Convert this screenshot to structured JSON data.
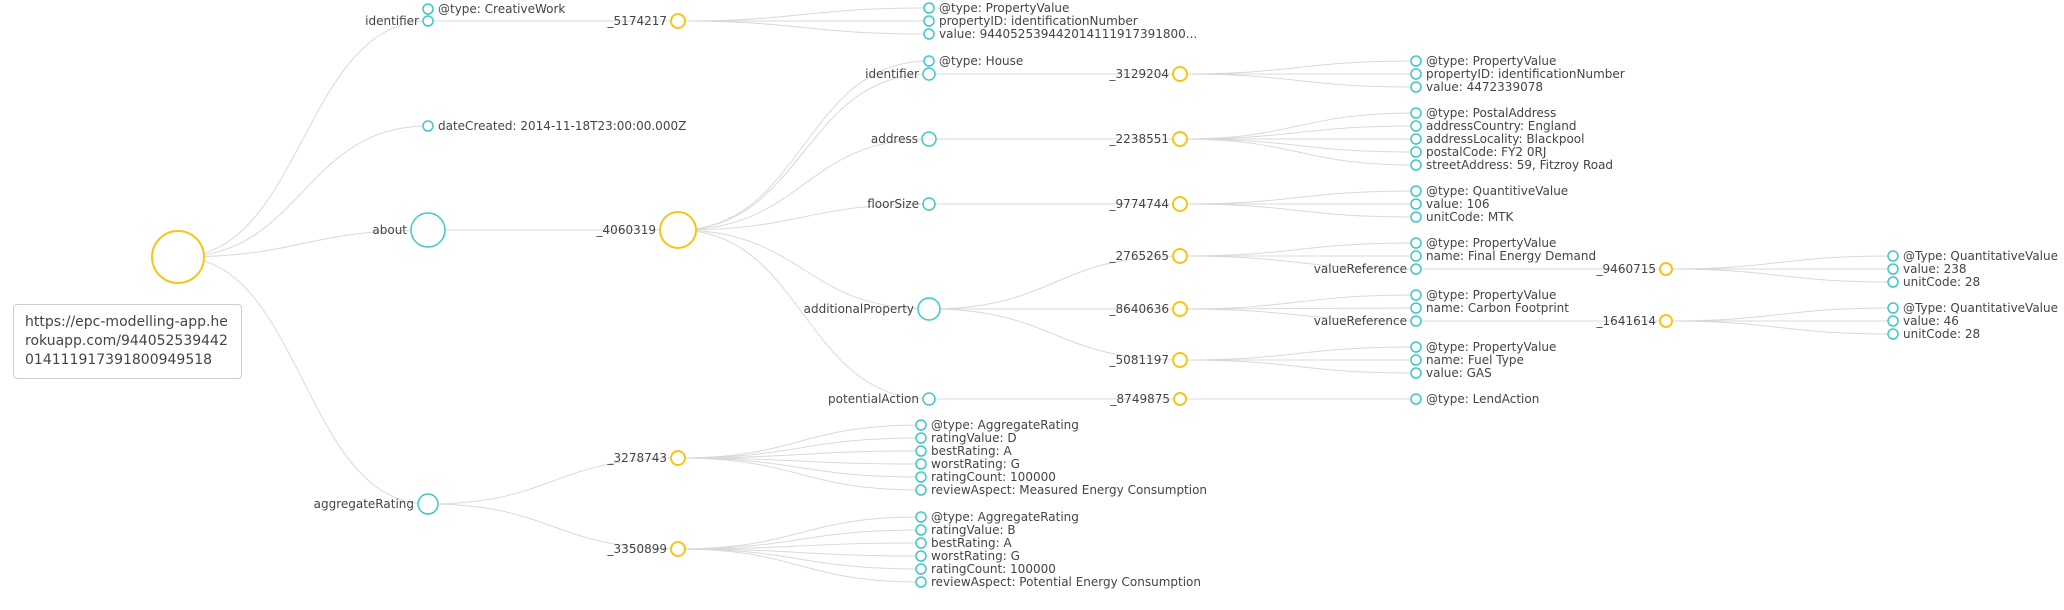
{
  "source_url": "https://epc-modelling-app.herokuapp.com/9440525394420141119173918009495​18",
  "colors": {
    "blank_node": "#f5c518",
    "property_node": "#3fc7c7",
    "link": "#d9d9d9",
    "text": "#444444"
  },
  "labels": {
    "n1": "identifier",
    "n2": "@type: CreativeWork",
    "n3": "_5174217",
    "n4": "@type: PropertyValue",
    "n5": "propertyID: identificationNumber",
    "n6": "value: 944052539442014111917391800...",
    "n7": "dateCreated: 2014-11-18T23:00:00.000Z",
    "n8": "about",
    "n9": "_4060319",
    "n10": "@type: House",
    "n11": "identifier",
    "n12": "_3129204",
    "n13": "@type: PropertyValue",
    "n14": "propertyID: identificationNumber",
    "n15": "value: 4472339078",
    "n16": "address",
    "n17": "_2238551",
    "n18": "@type: PostalAddress",
    "n19": "addressCountry: England",
    "n20": "addressLocality: Blackpool",
    "n21": "postalCode: FY2 0RJ",
    "n22": "streetAddress: 59, Fitzroy Road",
    "n23": "floorSize",
    "n24": "_9774744",
    "n25": "@type: QuantitiveValue",
    "n26": "value: 106",
    "n27": "unitCode: MTK",
    "n28": "additionalProperty",
    "n29": "_2765265",
    "n30": "@type: PropertyValue",
    "n31": "name: Final Energy Demand",
    "n32": "valueReference",
    "n33": "_9460715",
    "n34": "@Type: QuantitativeValue",
    "n35": "value: 238",
    "n36": "unitCode: 28",
    "n37": "_8640636",
    "n38": "@type: PropertyValue",
    "n39": "name: Carbon Footprint",
    "n40": "valueReference",
    "n41": "_1641614",
    "n42": "@Type: QuantitativeValue",
    "n43": "value: 46",
    "n44": "unitCode: 28",
    "n45": "_5081197",
    "n46": "@type: PropertyValue",
    "n47": "name: Fuel Type",
    "n48": "value: GAS",
    "n49": "potentialAction",
    "n50": "_8749875",
    "n51": "@type: LendAction",
    "n52": "aggregateRating",
    "n53": "_3278743",
    "n54": "@type: AggregateRating",
    "n55": "ratingValue: D",
    "n56": "bestRating: A",
    "n57": "worstRating: G",
    "n58": "ratingCount: 100000",
    "n59": "reviewAspect: Measured Energy Consumption",
    "n60": "_3350899",
    "n61": "@type: AggregateRating",
    "n62": "ratingValue: B",
    "n63": "bestRating: A",
    "n64": "worstRating: G",
    "n65": "ratingCount: 100000",
    "n66": "reviewAspect: Potential Energy Consumption"
  }
}
